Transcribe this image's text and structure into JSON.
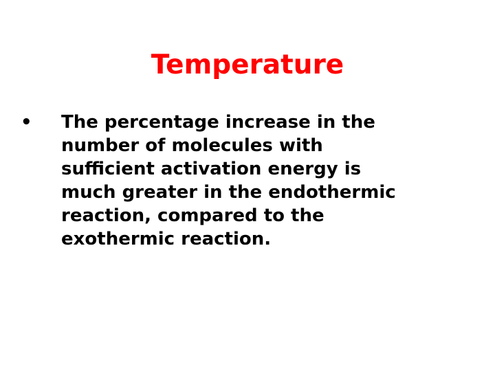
{
  "slide": {
    "title": "Temperature",
    "title_color": "#ff0000",
    "bullets": [
      {
        "marker": "•",
        "lines": [
          "The percentage increase in the",
          "number of molecules with",
          "sufficient activation energy is",
          "much greater in the endothermic",
          "reaction, compared to the",
          "exothermic reaction."
        ]
      }
    ]
  }
}
